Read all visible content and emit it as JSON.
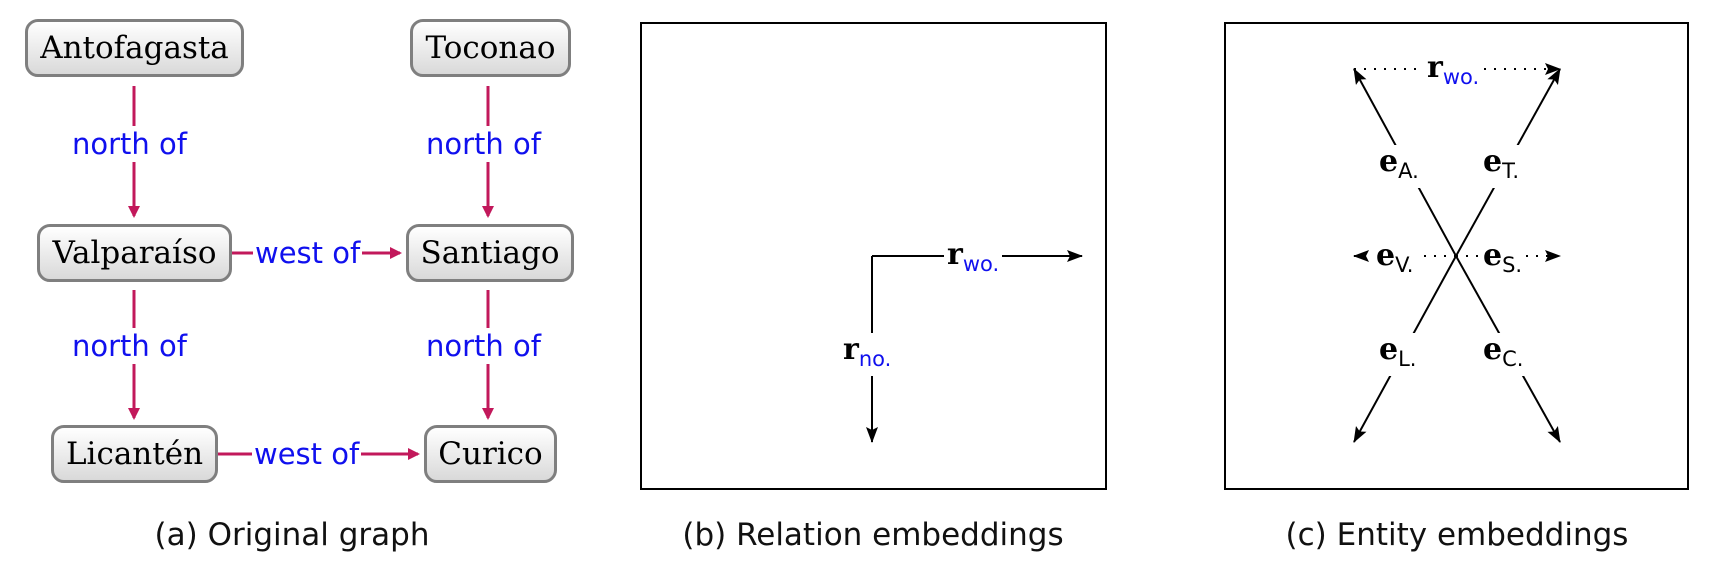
{
  "graph": {
    "nodes": {
      "antofagasta": "Antofagasta",
      "toconao": "Toconao",
      "valparaiso": "Valparaíso",
      "santiago": "Santiago",
      "licanten": "Licantén",
      "curico": "Curico"
    },
    "edges": {
      "anto_valp": "north of",
      "toco_sant": "north of",
      "valp_sant": "west of",
      "valp_lica": "north of",
      "sant_curi": "north of",
      "lica_curi": "west of"
    },
    "edge_color": "#c2185b",
    "label_color": "#1010ee"
  },
  "relation_embeddings": {
    "r_wo": {
      "symbol": "r",
      "subscript": "wo."
    },
    "r_no": {
      "symbol": "r",
      "subscript": "no."
    }
  },
  "entity_embeddings": {
    "r_wo": {
      "symbol": "r",
      "subscript": "wo."
    },
    "e_A": {
      "symbol": "e",
      "subscript": "A."
    },
    "e_T": {
      "symbol": "e",
      "subscript": "T."
    },
    "e_V": {
      "symbol": "e",
      "subscript": "V."
    },
    "e_S": {
      "symbol": "e",
      "subscript": "S."
    },
    "e_L": {
      "symbol": "e",
      "subscript": "L."
    },
    "e_C": {
      "symbol": "e",
      "subscript": "C."
    }
  },
  "captions": {
    "a": "(a) Original graph",
    "b": "(b) Relation embeddings",
    "c": "(c) Entity embeddings"
  }
}
